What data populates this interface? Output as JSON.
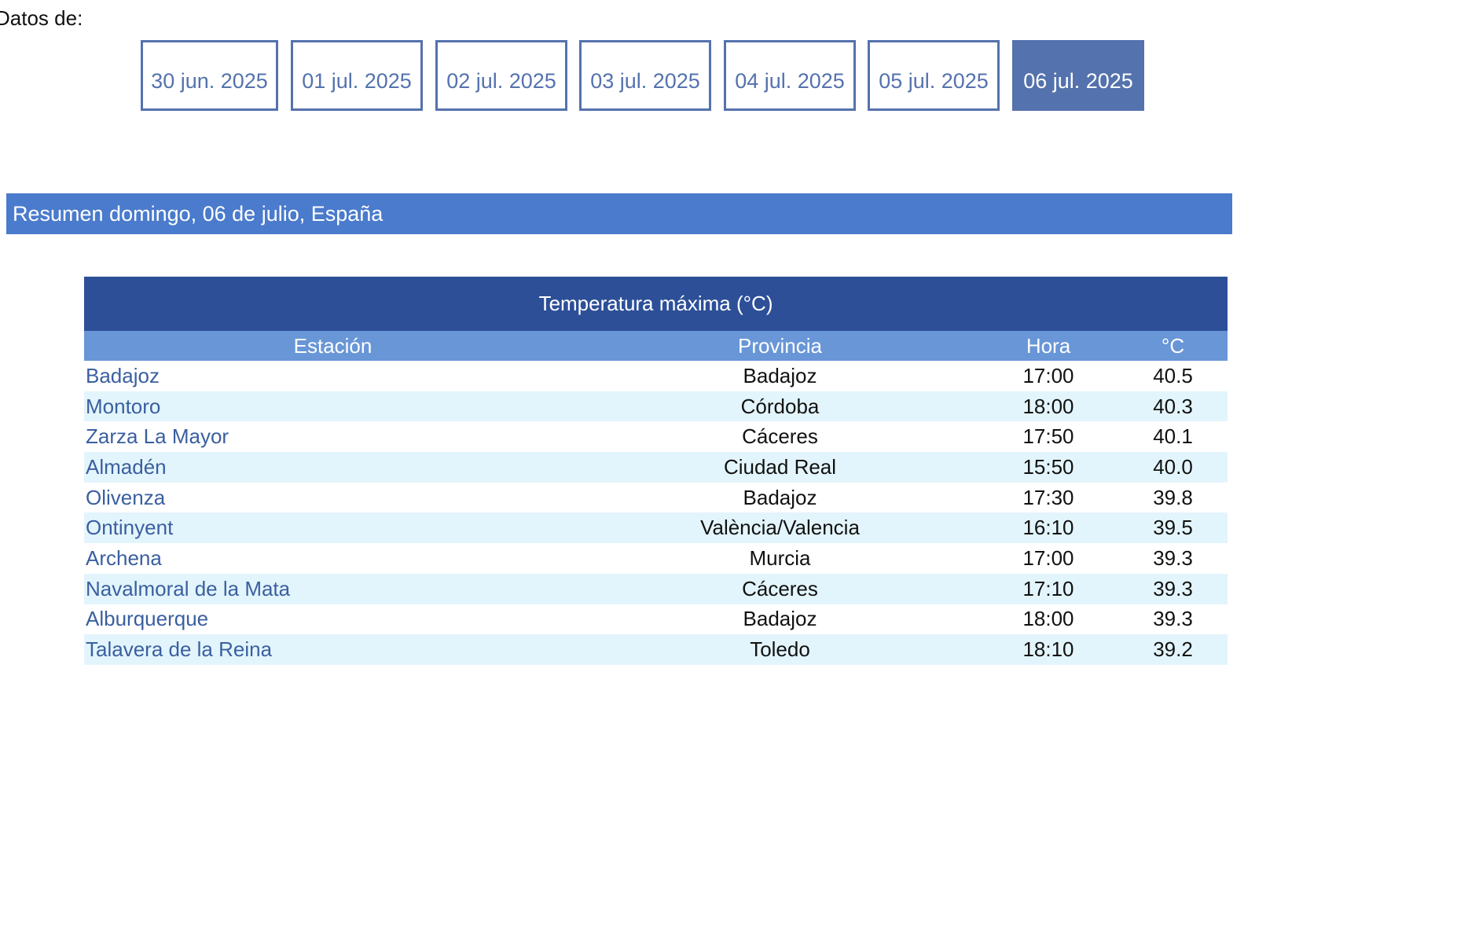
{
  "datos_label": "Datos de:",
  "dates": [
    {
      "label": "30 jun. 2025",
      "active": false
    },
    {
      "label": "01 jul. 2025",
      "active": false
    },
    {
      "label": "02 jul. 2025",
      "active": false
    },
    {
      "label": "03 jul. 2025",
      "active": false
    },
    {
      "label": "04 jul. 2025",
      "active": false
    },
    {
      "label": "05 jul. 2025",
      "active": false
    },
    {
      "label": "06 jul. 2025",
      "active": true
    }
  ],
  "summary_title": "Resumen domingo, 06 de julio, España",
  "table": {
    "title": "Temperatura máxima (°C)",
    "headers": [
      "Estación",
      "Provincia",
      "Hora",
      "°C"
    ],
    "rows": [
      {
        "station": "Badajoz",
        "province": "Badajoz",
        "time": "17:00",
        "temp": "40.5"
      },
      {
        "station": "Montoro",
        "province": "Córdoba",
        "time": "18:00",
        "temp": "40.3"
      },
      {
        "station": "Zarza La Mayor",
        "province": "Cáceres",
        "time": "17:50",
        "temp": "40.1"
      },
      {
        "station": "Almadén",
        "province": "Ciudad Real",
        "time": "15:50",
        "temp": "40.0"
      },
      {
        "station": "Olivenza",
        "province": "Badajoz",
        "time": "17:30",
        "temp": "39.8"
      },
      {
        "station": "Ontinyent",
        "province": "València/Valencia",
        "time": "16:10",
        "temp": "39.5"
      },
      {
        "station": "Archena",
        "province": "Murcia",
        "time": "17:00",
        "temp": "39.3"
      },
      {
        "station": "Navalmoral de la Mata",
        "province": "Cáceres",
        "time": "17:10",
        "temp": "39.3"
      },
      {
        "station": "Alburquerque",
        "province": "Badajoz",
        "time": "18:00",
        "temp": "39.3"
      },
      {
        "station": "Talavera de la Reina",
        "province": "Toledo",
        "time": "18:10",
        "temp": "39.2"
      }
    ]
  },
  "colors": {
    "date_button": "#5472ad",
    "summary_bar": "#4a7bcc",
    "table_title": "#2d4f98",
    "table_header": "#6896d7",
    "row_alt": "#e3f5fc",
    "station_link": "#3a5fa0"
  }
}
